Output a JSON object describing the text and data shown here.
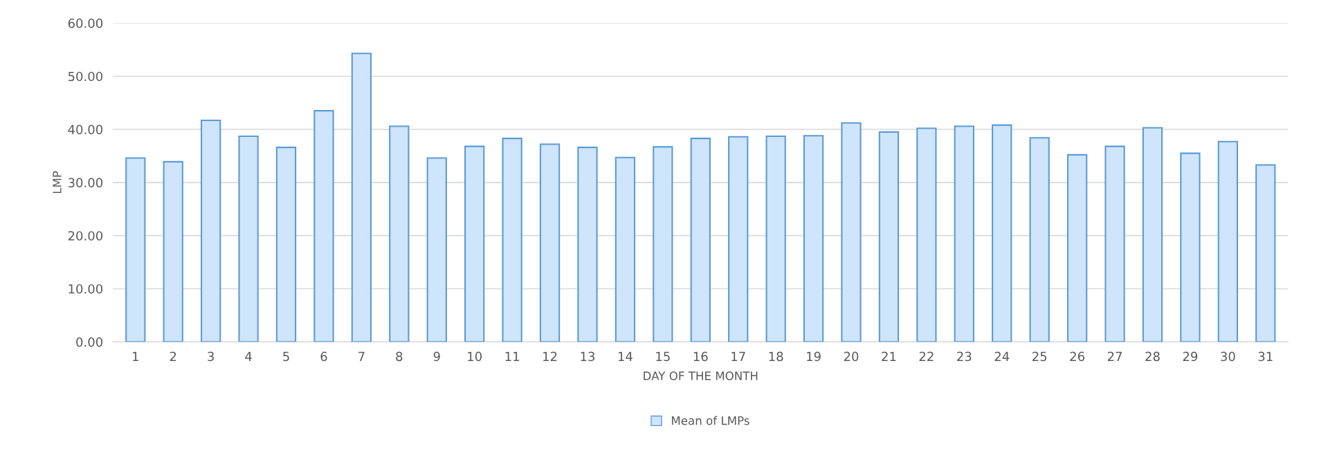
{
  "chart_data": {
    "type": "bar",
    "xlabel": "DAY OF THE MONTH",
    "ylabel": "LMP",
    "categories": [
      "1",
      "2",
      "3",
      "4",
      "5",
      "6",
      "7",
      "8",
      "9",
      "10",
      "11",
      "12",
      "13",
      "14",
      "15",
      "16",
      "17",
      "18",
      "19",
      "20",
      "21",
      "22",
      "23",
      "24",
      "25",
      "26",
      "27",
      "28",
      "29",
      "30",
      "31"
    ],
    "series": [
      {
        "name": "Mean of LMPs",
        "color": "#5b9bd5",
        "values": [
          34.6,
          33.9,
          41.7,
          38.7,
          36.6,
          43.5,
          54.3,
          40.6,
          34.6,
          36.8,
          38.3,
          37.2,
          36.6,
          34.7,
          36.7,
          38.3,
          38.6,
          38.7,
          38.8,
          41.2,
          39.5,
          40.2,
          40.6,
          40.8,
          38.4,
          35.2,
          36.8,
          40.3,
          35.5,
          37.7,
          33.3
        ]
      }
    ],
    "ylim": [
      0,
      60
    ],
    "yticks": [
      {
        "value": 0,
        "label": "0.00"
      },
      {
        "value": 10,
        "label": "10.00"
      },
      {
        "value": 20,
        "label": "20.00"
      },
      {
        "value": 30,
        "label": "30.00"
      },
      {
        "value": 40,
        "label": "40.00"
      },
      {
        "value": 50,
        "label": "50.00"
      },
      {
        "value": 60,
        "label": "60.00"
      }
    ],
    "grid": "y",
    "legend": "bottom"
  }
}
